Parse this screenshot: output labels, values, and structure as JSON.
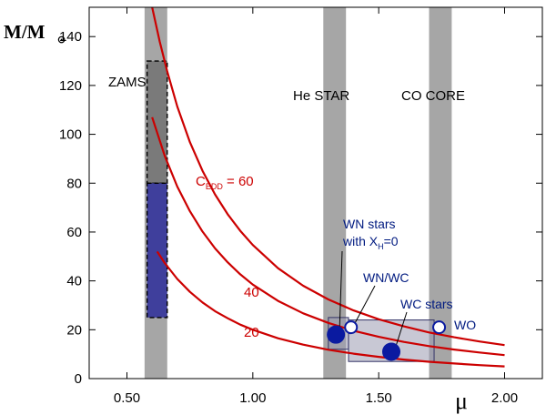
{
  "chart_data": {
    "type": "line",
    "title": "",
    "xlabel": "μ",
    "ylabel": "M/M",
    "ylabel_subscript": "⊙",
    "xlim": [
      0.35,
      2.15
    ],
    "ylim": [
      0,
      152
    ],
    "x_ticks": [
      0.5,
      1.0,
      1.5,
      2.0
    ],
    "x_tick_labels": [
      "0.50",
      "1.00",
      "1.50",
      "2.00"
    ],
    "y_ticks": [
      0,
      20,
      40,
      60,
      80,
      100,
      120,
      140
    ],
    "y_tick_labels": [
      "0",
      "20",
      "40",
      "60",
      "80",
      "100",
      "120",
      "140"
    ],
    "grid": false,
    "colors": {
      "curve": "#cc0000",
      "band": "#a6a6a6",
      "zams_upper": "#7a7a7a",
      "zams_lower": "#3f3f9c",
      "points": "#0a1aa0",
      "box": "#9a9ab0"
    },
    "bands": [
      {
        "name": "ZAMS",
        "x_center": 0.615,
        "width": 0.09
      },
      {
        "name": "He STAR",
        "x_center": 1.325,
        "width": 0.09
      },
      {
        "name": "CO  CORE",
        "x_center": 1.745,
        "width": 0.09
      }
    ],
    "series": [
      {
        "name": "C_EDD = 60",
        "constant": 60,
        "x": [
          0.6,
          0.63,
          0.66,
          0.7,
          0.75,
          0.8,
          0.85,
          0.9,
          0.95,
          1.0,
          1.1,
          1.2,
          1.3,
          1.4,
          1.5,
          1.6,
          1.7,
          1.8,
          1.9,
          2.0
        ],
        "values": [
          152.0,
          138.0,
          125.7,
          111.4,
          96.8,
          85.1,
          75.4,
          67.3,
          60.5,
          54.7,
          45.2,
          38.0,
          32.4,
          27.9,
          24.3,
          21.4,
          18.9,
          16.9,
          15.2,
          13.7
        ]
      },
      {
        "name": "40",
        "constant": 40,
        "x": [
          0.6,
          0.65,
          0.7,
          0.75,
          0.8,
          0.85,
          0.9,
          0.95,
          1.0,
          1.1,
          1.2,
          1.3,
          1.4,
          1.5,
          1.6,
          1.7,
          1.8,
          1.9,
          2.0
        ],
        "values": [
          107.0,
          91.2,
          78.6,
          68.5,
          60.2,
          53.3,
          47.6,
          42.7,
          38.5,
          31.8,
          26.7,
          22.8,
          19.6,
          17.1,
          15.0,
          13.3,
          11.9,
          10.7,
          9.6
        ]
      },
      {
        "name": "20",
        "constant": 20,
        "x": [
          0.62,
          0.65,
          0.7,
          0.75,
          0.8,
          0.85,
          0.9,
          0.95,
          1.0,
          1.1,
          1.2,
          1.3,
          1.4,
          1.5,
          1.6,
          1.7,
          1.8,
          1.9,
          2.0
        ],
        "values": [
          52.0,
          47.3,
          40.8,
          35.5,
          31.2,
          27.6,
          24.7,
          22.1,
          20.0,
          16.5,
          13.9,
          11.8,
          10.2,
          8.9,
          7.8,
          6.9,
          6.2,
          5.5,
          5.0
        ]
      }
    ],
    "zams_boxes": [
      {
        "name": "upper",
        "x_range": [
          0.58,
          0.66
        ],
        "y_range": [
          80,
          130
        ],
        "dashed": true
      },
      {
        "name": "lower",
        "x_range": [
          0.58,
          0.66
        ],
        "y_range": [
          25,
          80
        ],
        "dashed": true
      }
    ],
    "star_boxes": [
      {
        "name": "He star box",
        "x_range": [
          1.3,
          1.38
        ],
        "y_range": [
          12,
          25
        ]
      },
      {
        "name": "WN/WC box",
        "x_range": [
          1.38,
          1.72
        ],
        "y_range": [
          7,
          24
        ]
      }
    ],
    "points": [
      {
        "name": "WN stars with X_H=0",
        "x": 1.33,
        "y": 18,
        "filled": true
      },
      {
        "name": "WN/WC",
        "x": 1.39,
        "y": 21,
        "filled": false
      },
      {
        "name": "WC stars",
        "x": 1.55,
        "y": 11,
        "filled": true
      },
      {
        "name": "WO",
        "x": 1.74,
        "y": 21,
        "filled": false
      }
    ],
    "annotations": {
      "zams": "ZAMS",
      "he_star": "He STAR",
      "co_core": "CO  CORE",
      "c_edd_main": "C",
      "c_edd_sub": "EDD",
      "c_edd_value": " = 60",
      "label_40": "40",
      "label_20": "20",
      "wn_line1": "WN stars",
      "wn_line2_prefix": "with X",
      "wn_line2_sub": "H",
      "wn_line2_suffix": "=0",
      "wn_wc": "WN/WC",
      "wc_stars": "WC stars",
      "wo": "WO"
    }
  }
}
